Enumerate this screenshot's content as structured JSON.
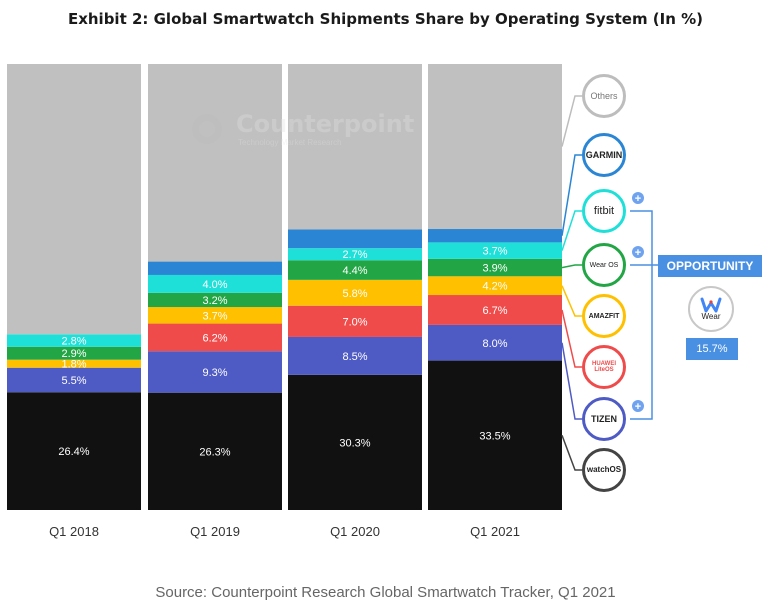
{
  "title": "Exhibit 2: Global Smartwatch Shipments Share by Operating System (In %)",
  "source": "Source: Counterpoint Research Global Smartwatch Tracker, Q1 2021",
  "watermark": {
    "name": "Counterpoint",
    "tagline": "Technology Market Research"
  },
  "opportunity": {
    "label": "OPPORTUNITY",
    "value": "15.7%"
  },
  "colors": {
    "watchOS": "#111111",
    "Tizen": "#4f5bc4",
    "Huawei": "#f04b4b",
    "Amazfit": "#ffc000",
    "WearOS": "#22a645",
    "Fitbit": "#1fe0d8",
    "Garmin": "#2a86d4",
    "Others": "#c0c0c0"
  },
  "logos": [
    {
      "key": "Others",
      "label": "Others",
      "icon": "others-logo-icon",
      "ring": "#bdbdbd"
    },
    {
      "key": "Garmin",
      "label": "GARMIN",
      "icon": "garmin-logo-icon",
      "ring": "#2a86d4"
    },
    {
      "key": "Fitbit",
      "label": "fitbit",
      "icon": "fitbit-logo-icon",
      "ring": "#1fe0d8"
    },
    {
      "key": "WearOS",
      "label": "Wear OS",
      "icon": "wear-os-logo-icon",
      "ring": "#22a645"
    },
    {
      "key": "Amazfit",
      "label": "AMAZFIT",
      "icon": "amazfit-logo-icon",
      "ring": "#ffc000"
    },
    {
      "key": "Huawei",
      "label": "HUAWEI LiteOS",
      "icon": "huawei-logo-icon",
      "ring": "#f04b4b"
    },
    {
      "key": "Tizen",
      "label": "TIZEN",
      "icon": "tizen-logo-icon",
      "ring": "#4f5bc4"
    },
    {
      "key": "watchOS",
      "label": "watchOS",
      "icon": "watchos-logo-icon",
      "ring": "#444444"
    }
  ],
  "opportunity_logo": {
    "label": "Wear",
    "icon": "wear-logo-icon"
  },
  "chart_data": {
    "type": "bar",
    "stacked": true,
    "categories": [
      "Q1 2018",
      "Q1 2019",
      "Q1 2020",
      "Q1 2021"
    ],
    "ylim": [
      0,
      100
    ],
    "series": [
      {
        "name": "watchOS",
        "values": [
          26.4,
          26.3,
          30.3,
          33.5
        ],
        "labels": [
          "26.4%",
          "26.3%",
          "30.3%",
          "33.5%"
        ]
      },
      {
        "name": "Tizen",
        "values": [
          5.5,
          9.3,
          8.5,
          8.0
        ],
        "labels": [
          "5.5%",
          "9.3%",
          "8.5%",
          "8.0%"
        ]
      },
      {
        "name": "Huawei",
        "values": [
          0,
          6.2,
          7.0,
          6.7
        ],
        "labels": [
          "",
          "6.2%",
          "7.0%",
          "6.7%"
        ]
      },
      {
        "name": "Amazfit",
        "values": [
          1.8,
          3.7,
          5.8,
          4.2
        ],
        "labels": [
          "1.8%",
          "3.7%",
          "5.8%",
          "4.2%"
        ]
      },
      {
        "name": "WearOS",
        "values": [
          2.9,
          3.2,
          4.4,
          3.9
        ],
        "labels": [
          "2.9%",
          "3.2%",
          "4.4%",
          "3.9%"
        ]
      },
      {
        "name": "Fitbit",
        "values": [
          2.8,
          4.0,
          2.7,
          3.7
        ],
        "labels": [
          "2.8%",
          "4.0%",
          "2.7%",
          "3.7%"
        ]
      },
      {
        "name": "Garmin",
        "values": [
          0,
          3.0,
          4.2,
          3.0
        ],
        "labels": [
          "",
          "",
          "",
          ""
        ]
      },
      {
        "name": "Others",
        "values": [
          60.6,
          44.3,
          37.1,
          37.0
        ],
        "labels": [
          "",
          "",
          "",
          ""
        ]
      }
    ]
  }
}
